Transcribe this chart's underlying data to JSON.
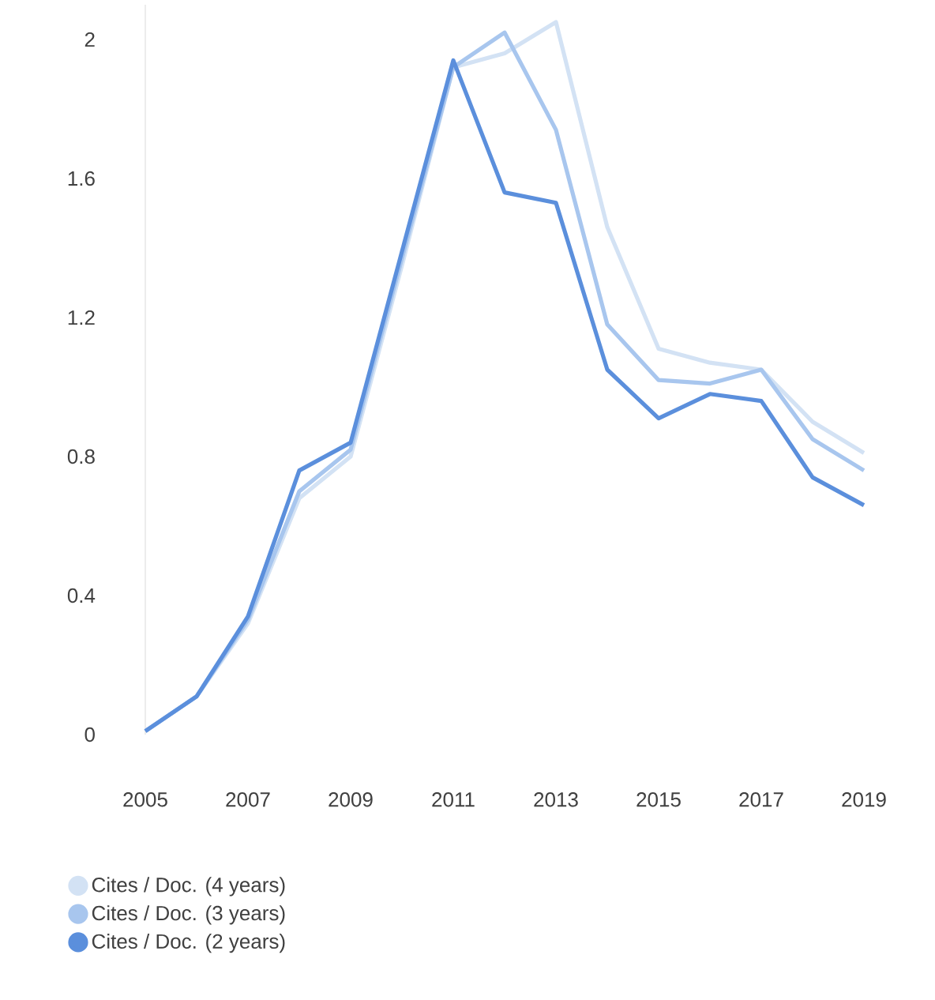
{
  "chart_data": {
    "type": "line",
    "x": [
      2005,
      2006,
      2007,
      2008,
      2009,
      2010,
      2011,
      2012,
      2013,
      2014,
      2015,
      2016,
      2017,
      2018,
      2019
    ],
    "xlim": [
      2005,
      2019
    ],
    "xticks": [
      2005,
      2007,
      2009,
      2011,
      2013,
      2015,
      2017,
      2019
    ],
    "ylim": [
      0,
      2.1
    ],
    "yticks": [
      0,
      0.4,
      0.8,
      1.2,
      1.6,
      2
    ],
    "grid": false,
    "legend": "bottom left",
    "marker": "none",
    "line_style": "solid",
    "series": [
      {
        "name": "Cites / Doc. (4 years)",
        "color": "#d3e2f4",
        "values": [
          0.01,
          0.11,
          0.32,
          0.68,
          0.8,
          1.35,
          1.92,
          1.96,
          2.05,
          1.46,
          1.11,
          1.07,
          1.05,
          0.9,
          0.81
        ]
      },
      {
        "name": "Cites / Doc. (3 years)",
        "color": "#a8c6ee",
        "values": [
          0.01,
          0.11,
          0.33,
          0.7,
          0.82,
          1.37,
          1.92,
          2.02,
          1.74,
          1.18,
          1.02,
          1.01,
          1.05,
          0.85,
          0.76
        ]
      },
      {
        "name": "Cites / Doc. (2 years)",
        "color": "#5b8fdc",
        "values": [
          0.01,
          0.11,
          0.34,
          0.76,
          0.84,
          1.39,
          1.94,
          1.56,
          1.53,
          1.05,
          0.91,
          0.98,
          0.96,
          0.74,
          0.66
        ]
      }
    ]
  }
}
